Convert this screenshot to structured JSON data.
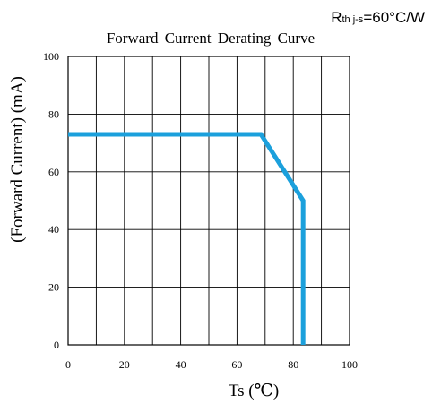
{
  "chart_data": {
    "type": "line",
    "title": "Forward Current Derating Curve",
    "annotation": {
      "prefix": "R",
      "subscript": "th j-s",
      "suffix": "=60°C/W"
    },
    "xlabel": "Ts (℃)",
    "ylabel": "(Forward Current) (mA)",
    "xlim": [
      0,
      100
    ],
    "ylim": [
      0,
      100
    ],
    "x_ticks": [
      0,
      20,
      40,
      60,
      80,
      100
    ],
    "y_ticks": [
      0,
      20,
      40,
      60,
      80,
      100
    ],
    "grid": true,
    "x_grid_step": 10,
    "y_grid_step": 20,
    "series": [
      {
        "color": "#1ba0dc",
        "x": [
          0,
          68.5,
          83.5,
          83.5
        ],
        "y": [
          73,
          73,
          50,
          0
        ]
      }
    ]
  }
}
